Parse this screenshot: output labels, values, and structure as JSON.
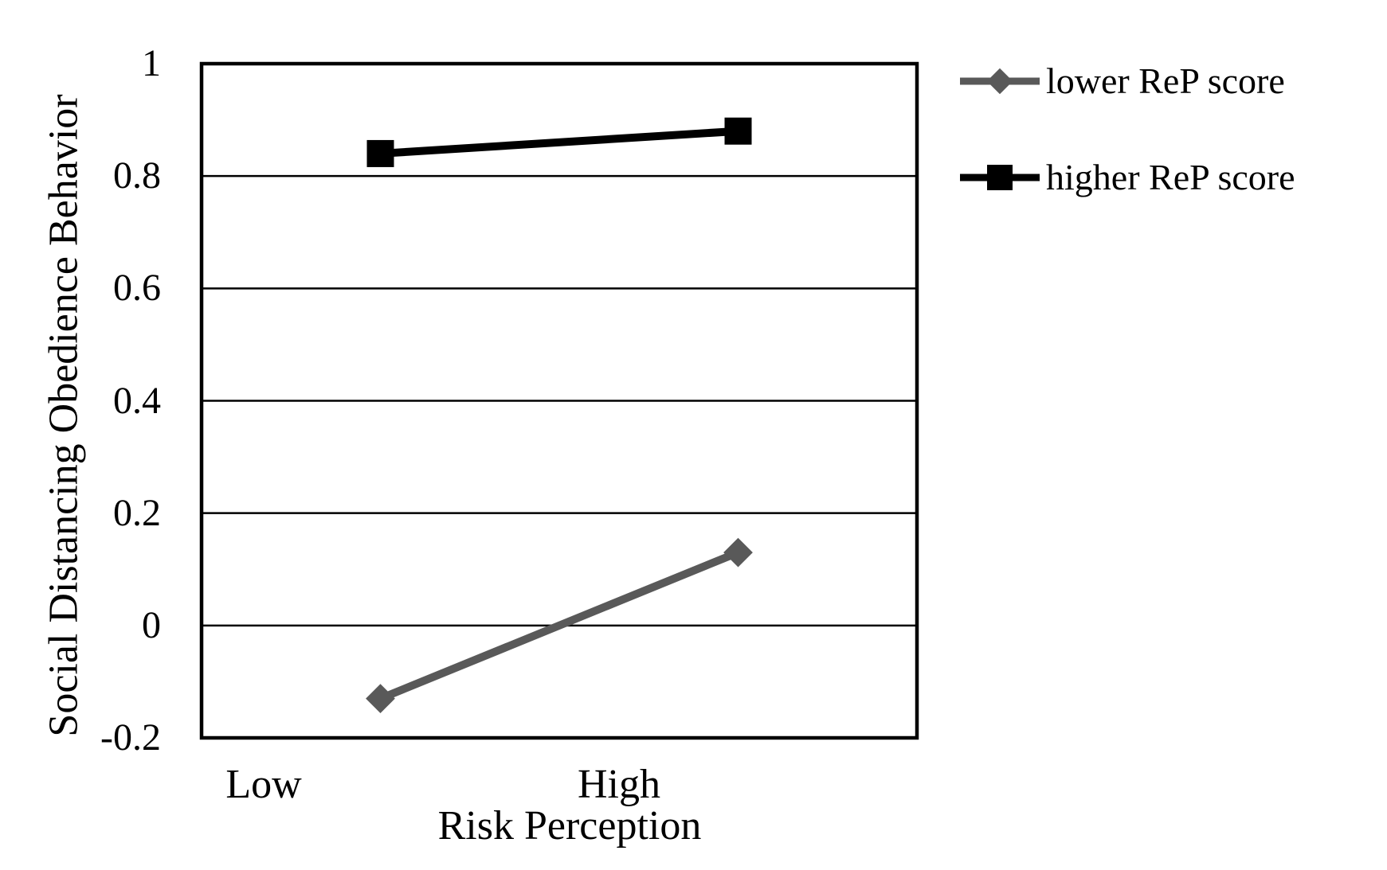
{
  "chart_data": {
    "type": "line",
    "categories": [
      "Low",
      "High"
    ],
    "xlabel": "Risk Perception",
    "ylabel": "Social Distancing Obedience Behavior",
    "series": [
      {
        "name": "lower ReP score",
        "color": "#595959",
        "marker": "diamond",
        "values": [
          -0.13,
          0.13
        ]
      },
      {
        "name": "higher ReP score",
        "color": "#000000",
        "marker": "square",
        "values": [
          0.84,
          0.88
        ]
      }
    ],
    "ylim": [
      -0.2,
      1
    ],
    "yticks": [
      1,
      0.8,
      0.6,
      0.4,
      0.2,
      0,
      -0.2
    ],
    "ytick_labels": [
      "1",
      "0.8",
      "0.6",
      "0.4",
      "0.2",
      "0",
      "-0.2"
    ],
    "grid": "horizontal",
    "legend_position": "outside-top-right",
    "axis_color": "#000000",
    "background_color": "#ffffff"
  }
}
